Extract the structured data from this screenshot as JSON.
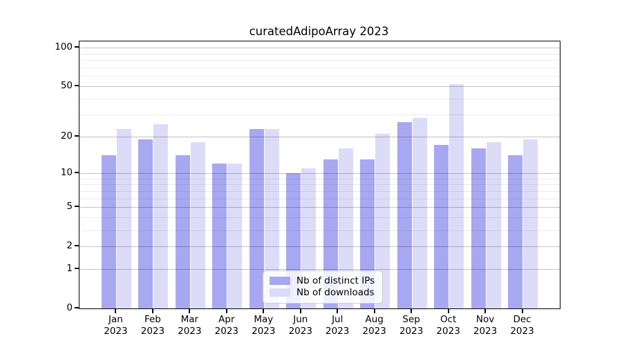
{
  "chart_data": {
    "type": "bar",
    "title": "curatedAdipoArray 2023",
    "categories": [
      "Jan",
      "Feb",
      "Mar",
      "Apr",
      "May",
      "Jun",
      "Jul",
      "Aug",
      "Sep",
      "Oct",
      "Nov",
      "Dec"
    ],
    "year_label": "2023",
    "series": [
      {
        "name": "Nb of distinct IPs",
        "color": "#a8a8f2",
        "values": [
          14,
          19,
          14,
          12,
          23,
          10,
          13,
          13,
          26,
          17,
          16,
          14
        ]
      },
      {
        "name": "Nb of downloads",
        "color": "#dcdcf9",
        "values": [
          23,
          25,
          18,
          12,
          23,
          11,
          16,
          21,
          28,
          52,
          18,
          19
        ]
      }
    ],
    "y_axis": {
      "scale": "log10(value+1)",
      "major_tick_values": [
        0,
        1,
        2,
        5,
        10,
        20,
        50,
        100
      ],
      "major_tick_labels": [
        "0",
        "1",
        "2",
        "5",
        "10",
        "20",
        "50",
        "100"
      ],
      "minor_tick_values": [
        3,
        4,
        6,
        7,
        8,
        9,
        30,
        40,
        60,
        70,
        80,
        90
      ],
      "ylim": [
        0,
        112
      ]
    },
    "xlabel": "",
    "ylabel": "",
    "grid": "horizontal",
    "legend_position": "lower center"
  },
  "legend": {
    "items": [
      {
        "label": "Nb of distinct IPs"
      },
      {
        "label": "Nb of downloads"
      }
    ]
  },
  "colors": {
    "background": "#ffffff",
    "bar_ips": "#a8a8f2",
    "bar_downloads": "#dcdcf9",
    "grid_major": "rgba(0,0,0,0.24)",
    "grid_minor": "rgba(0,0,0,0.08)",
    "axis": "#000000",
    "text": "#000000"
  }
}
